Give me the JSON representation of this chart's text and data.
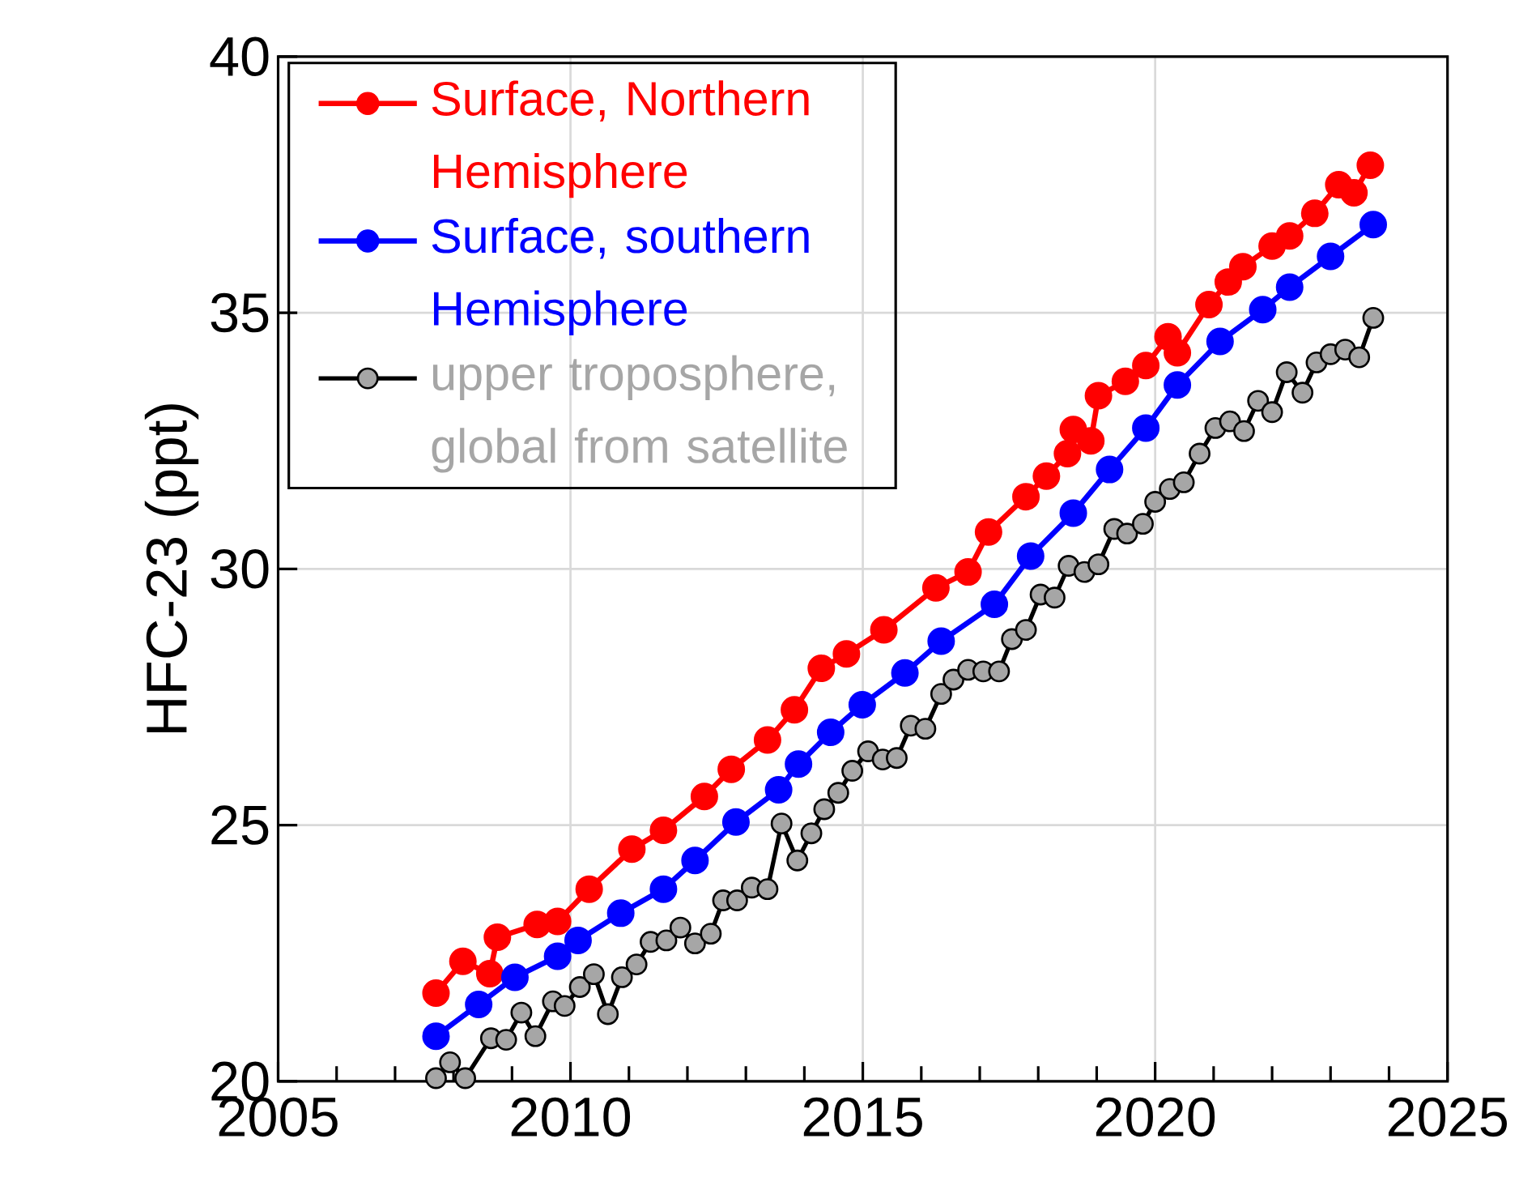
{
  "chart_data": {
    "type": "line",
    "ylabel": "HFC-23 (ppt)",
    "xlim": [
      2005,
      2025
    ],
    "ylim": [
      20,
      40
    ],
    "xticks": [
      2005,
      {
        "value": 2006,
        "label": null
      },
      {
        "value": 2007,
        "label": null
      },
      {
        "value": 2008,
        "label": null
      },
      {
        "value": 2009,
        "label": null
      },
      2010,
      {
        "value": 2011,
        "label": null
      },
      {
        "value": 2012,
        "label": null
      },
      {
        "value": 2013,
        "label": null
      },
      {
        "value": 2014,
        "label": null
      },
      2015,
      {
        "value": 2016,
        "label": null
      },
      {
        "value": 2017,
        "label": null
      },
      {
        "value": 2018,
        "label": null
      },
      {
        "value": 2019,
        "label": null
      },
      2020,
      {
        "value": 2021,
        "label": null
      },
      {
        "value": 2022,
        "label": null
      },
      {
        "value": 2023,
        "label": null
      },
      {
        "value": 2024,
        "label": null
      },
      2025
    ],
    "yticks": [
      20,
      25,
      30,
      35,
      40
    ],
    "grid": true,
    "legend": "top left",
    "marker": "circle",
    "series": [
      {
        "name": "Surface, Northern Hemisphere",
        "color": "#ff0000",
        "x": [
          2007.7,
          2008.16,
          2008.62,
          2008.75,
          2009.43,
          2009.78,
          2010.32,
          2011.05,
          2011.59,
          2012.29,
          2012.75,
          2013.37,
          2013.83,
          2014.29,
          2014.72,
          2015.36,
          2016.25,
          2016.8,
          2017.15,
          2017.79,
          2018.14,
          2018.5,
          2018.6,
          2018.9,
          2019.03,
          2019.49,
          2019.84,
          2020.22,
          2020.38,
          2020.92,
          2021.25,
          2021.5,
          2022.0,
          2022.3,
          2022.73,
          2023.14,
          2023.4,
          2023.68
        ],
        "values": [
          21.72,
          22.34,
          22.1,
          22.81,
          23.06,
          23.12,
          23.75,
          24.53,
          24.9,
          25.56,
          26.09,
          26.66,
          27.25,
          28.06,
          28.34,
          28.81,
          29.63,
          29.94,
          30.72,
          31.41,
          31.81,
          32.25,
          32.72,
          32.5,
          33.38,
          33.66,
          33.97,
          34.53,
          34.22,
          35.16,
          35.6,
          35.9,
          36.3,
          36.5,
          36.94,
          37.5,
          37.34,
          37.88
        ]
      },
      {
        "name": "Surface, southern Hemisphere",
        "color": "#0000ff",
        "x": [
          2007.7,
          2008.43,
          2009.05,
          2009.78,
          2010.13,
          2010.86,
          2011.59,
          2012.13,
          2012.83,
          2013.56,
          2013.9,
          2014.45,
          2014.99,
          2015.72,
          2016.34,
          2017.25,
          2017.87,
          2018.6,
          2019.22,
          2019.84,
          2020.38,
          2021.11,
          2021.84,
          2022.3,
          2023.0,
          2023.73
        ],
        "values": [
          20.88,
          21.5,
          22.03,
          22.44,
          22.75,
          23.28,
          23.75,
          24.31,
          25.06,
          25.69,
          26.19,
          26.81,
          27.35,
          27.97,
          28.59,
          29.31,
          30.25,
          31.09,
          31.94,
          32.75,
          33.59,
          34.44,
          35.06,
          35.5,
          36.1,
          36.72
        ]
      },
      {
        "name": "upper troposphere, global from satellite",
        "color": "#a6a6a6",
        "x": [
          2007.7,
          2007.94,
          2008.2,
          2008.64,
          2008.9,
          2009.16,
          2009.4,
          2009.7,
          2009.9,
          2010.16,
          2010.4,
          2010.64,
          2010.88,
          2011.13,
          2011.37,
          2011.64,
          2011.88,
          2012.13,
          2012.4,
          2012.61,
          2012.85,
          2013.1,
          2013.37,
          2013.61,
          2013.88,
          2014.12,
          2014.34,
          2014.58,
          2014.82,
          2015.09,
          2015.34,
          2015.58,
          2015.82,
          2016.07,
          2016.34,
          2016.55,
          2016.8,
          2017.06,
          2017.33,
          2017.55,
          2017.79,
          2018.04,
          2018.28,
          2018.52,
          2018.79,
          2019.03,
          2019.3,
          2019.52,
          2019.79,
          2020.0,
          2020.25,
          2020.49,
          2020.76,
          2021.03,
          2021.28,
          2021.52,
          2021.76,
          2022.0,
          2022.25,
          2022.52,
          2022.76,
          2023.0,
          2023.25,
          2023.49,
          2023.73
        ],
        "values": [
          20.06,
          20.37,
          20.06,
          20.84,
          20.81,
          21.34,
          20.88,
          21.56,
          21.47,
          21.84,
          22.09,
          21.31,
          22.03,
          22.28,
          22.72,
          22.75,
          23.0,
          22.69,
          22.88,
          23.53,
          23.53,
          23.78,
          23.75,
          25.03,
          24.31,
          24.84,
          25.31,
          25.63,
          26.06,
          26.44,
          26.28,
          26.31,
          26.94,
          26.88,
          27.56,
          27.84,
          28.03,
          28.0,
          28.0,
          28.63,
          28.81,
          29.5,
          29.44,
          30.06,
          29.94,
          30.09,
          30.78,
          30.69,
          30.88,
          31.31,
          31.56,
          31.69,
          32.25,
          32.75,
          32.88,
          32.69,
          33.28,
          33.06,
          33.84,
          33.44,
          34.03,
          34.19,
          34.28,
          34.13,
          34.9
        ]
      }
    ]
  }
}
